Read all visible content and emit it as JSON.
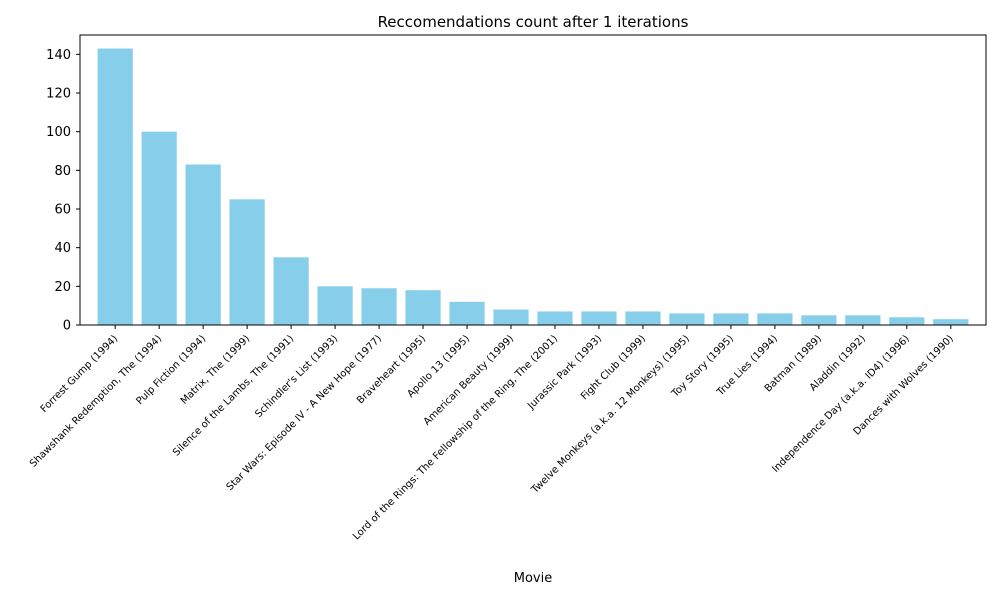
{
  "chart_data": {
    "type": "bar",
    "title": "Reccomendations count after 1 iterations",
    "xlabel": "Movie",
    "ylabel": "",
    "ylim": [
      0,
      150
    ],
    "yticks": [
      0,
      20,
      40,
      60,
      80,
      100,
      120,
      140
    ],
    "grid": false,
    "bar_color": "#87CEEB",
    "categories": [
      "Forrest Gump (1994)",
      "Shawshank Redemption, The (1994)",
      "Pulp Fiction (1994)",
      "Matrix, The (1999)",
      "Silence of the Lambs, The (1991)",
      "Schindler's List (1993)",
      "Star Wars: Episode IV - A New Hope (1977)",
      "Braveheart (1995)",
      "Apollo 13 (1995)",
      "American Beauty (1999)",
      "Lord of the Rings: The Fellowship of the Ring, The (2001)",
      "Jurassic Park (1993)",
      "Fight Club (1999)",
      "Twelve Monkeys (a.k.a. 12 Monkeys) (1995)",
      "Toy Story (1995)",
      "True Lies (1994)",
      "Batman (1989)",
      "Aladdin (1992)",
      "Independence Day (a.k.a. ID4) (1996)",
      "Dances with Wolves (1990)"
    ],
    "values": [
      143,
      100,
      83,
      65,
      35,
      20,
      19,
      18,
      12,
      8,
      7,
      7,
      7,
      6,
      6,
      6,
      5,
      5,
      4,
      3
    ]
  }
}
